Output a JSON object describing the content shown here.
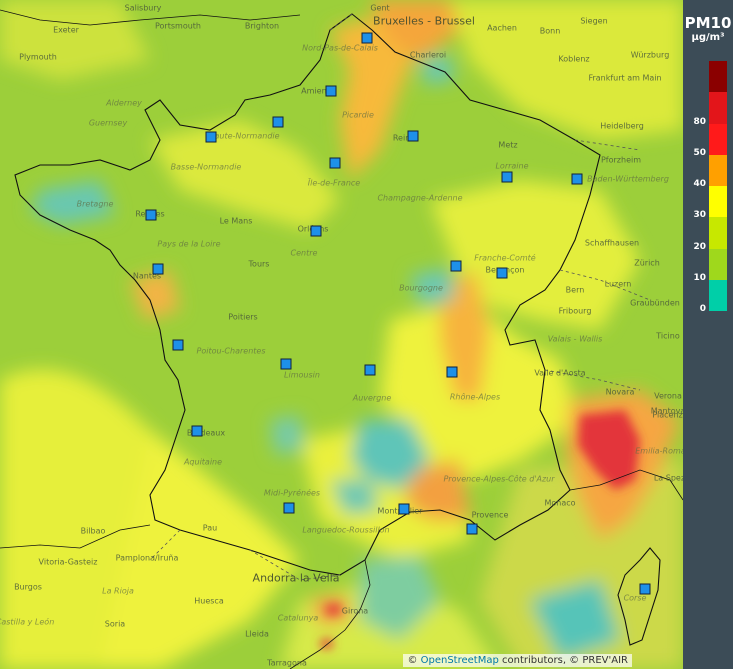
{
  "legend": {
    "title": "PM10",
    "unit": "µg/m³",
    "bins": [
      {
        "color": "#8b0000",
        "label": ""
      },
      {
        "color": "#e3151a",
        "label": "80"
      },
      {
        "color": "#ff1a1a",
        "label": "50"
      },
      {
        "color": "#ffa000",
        "label": "40"
      },
      {
        "color": "#ffff00",
        "label": "30"
      },
      {
        "color": "#c7e800",
        "label": "20"
      },
      {
        "color": "#9fd81c",
        "label": "10"
      },
      {
        "color": "#00cfa8",
        "label": "0"
      }
    ]
  },
  "attribution": {
    "prefix": "©",
    "osm": "OpenStreetMap",
    "middle": "contributors, ©",
    "prevair": "PREV'AIR"
  },
  "places": [
    {
      "name": "Salisbury",
      "cls": ""
    },
    {
      "name": "Portsmouth",
      "cls": ""
    },
    {
      "name": "Brighton",
      "cls": ""
    },
    {
      "name": "Exeter",
      "cls": ""
    },
    {
      "name": "Plymouth",
      "cls": ""
    },
    {
      "name": "Bruxelles - Brussel",
      "cls": "big"
    },
    {
      "name": "Gent",
      "cls": ""
    },
    {
      "name": "Aachen",
      "cls": ""
    },
    {
      "name": "Bonn",
      "cls": ""
    },
    {
      "name": "Siegen",
      "cls": ""
    },
    {
      "name": "Charleroi",
      "cls": ""
    },
    {
      "name": "Koblenz",
      "cls": ""
    },
    {
      "name": "Frankfurt am Main",
      "cls": ""
    },
    {
      "name": "Würzburg",
      "cls": ""
    },
    {
      "name": "Nord-Pas-de-Calais",
      "cls": "region"
    },
    {
      "name": "Amiens",
      "cls": ""
    },
    {
      "name": "Picardie",
      "cls": "region"
    },
    {
      "name": "Alderney",
      "cls": "region"
    },
    {
      "name": "Guernsey",
      "cls": "region"
    },
    {
      "name": "Haute-Normandie",
      "cls": "region"
    },
    {
      "name": "Basse-Normandie",
      "cls": "region"
    },
    {
      "name": "Reims",
      "cls": ""
    },
    {
      "name": "Metz",
      "cls": ""
    },
    {
      "name": "Lorraine",
      "cls": "region"
    },
    {
      "name": "Heidelberg",
      "cls": ""
    },
    {
      "name": "Pforzheim",
      "cls": ""
    },
    {
      "name": "Baden-Württemberg",
      "cls": "region"
    },
    {
      "name": "Île-de-France",
      "cls": "region"
    },
    {
      "name": "Champagne-Ardenne",
      "cls": "region"
    },
    {
      "name": "Bretagne",
      "cls": "region"
    },
    {
      "name": "Rennes",
      "cls": ""
    },
    {
      "name": "Le Mans",
      "cls": ""
    },
    {
      "name": "Orléans",
      "cls": ""
    },
    {
      "name": "Pays de la Loire",
      "cls": "region"
    },
    {
      "name": "Centre",
      "cls": "region"
    },
    {
      "name": "Tours",
      "cls": ""
    },
    {
      "name": "Nantes",
      "cls": ""
    },
    {
      "name": "Besançon",
      "cls": ""
    },
    {
      "name": "Bourgogne",
      "cls": "region"
    },
    {
      "name": "Franche-Comté",
      "cls": "region"
    },
    {
      "name": "Schaffhausen",
      "cls": ""
    },
    {
      "name": "Zürich",
      "cls": ""
    },
    {
      "name": "Bern",
      "cls": ""
    },
    {
      "name": "Luzern",
      "cls": ""
    },
    {
      "name": "Fribourg",
      "cls": ""
    },
    {
      "name": "Graubünden",
      "cls": ""
    },
    {
      "name": "Ticino",
      "cls": ""
    },
    {
      "name": "Valais - Wallis",
      "cls": "region"
    },
    {
      "name": "Poitiers",
      "cls": ""
    },
    {
      "name": "Poitou-Charentes",
      "cls": "region"
    },
    {
      "name": "Limousin",
      "cls": "region"
    },
    {
      "name": "Auvergne",
      "cls": "region"
    },
    {
      "name": "Rhône-Alpes",
      "cls": "region"
    },
    {
      "name": "Valle d'Aosta",
      "cls": ""
    },
    {
      "name": "Novara",
      "cls": ""
    },
    {
      "name": "Verona",
      "cls": ""
    },
    {
      "name": "Mantova",
      "cls": ""
    },
    {
      "name": "Piacenza",
      "cls": ""
    },
    {
      "name": "Emilia-Romagna",
      "cls": "region"
    },
    {
      "name": "La Spezia",
      "cls": ""
    },
    {
      "name": "Bordeaux",
      "cls": ""
    },
    {
      "name": "Aquitaine",
      "cls": "region"
    },
    {
      "name": "Provence-Alpes-Côte d'Azur",
      "cls": "region"
    },
    {
      "name": "Monaco",
      "cls": ""
    },
    {
      "name": "Midi-Pyrénées",
      "cls": "region"
    },
    {
      "name": "Bilbao",
      "cls": ""
    },
    {
      "name": "Pau",
      "cls": ""
    },
    {
      "name": "Montpellier",
      "cls": ""
    },
    {
      "name": "Provence",
      "cls": ""
    },
    {
      "name": "Languedoc-Roussillon",
      "cls": "region"
    },
    {
      "name": "Pamplona/Iruña",
      "cls": ""
    },
    {
      "name": "Vitoria-Gasteiz",
      "cls": ""
    },
    {
      "name": "Andorra la Vella",
      "cls": "big"
    },
    {
      "name": "Burgos",
      "cls": ""
    },
    {
      "name": "La Rioja",
      "cls": "region"
    },
    {
      "name": "Girona",
      "cls": ""
    },
    {
      "name": "Catalunya",
      "cls": "region"
    },
    {
      "name": "Huesca",
      "cls": ""
    },
    {
      "name": "Soria",
      "cls": ""
    },
    {
      "name": "Lleida",
      "cls": ""
    },
    {
      "name": "Tarragona",
      "cls": ""
    },
    {
      "name": "Castilla y León",
      "cls": "region"
    },
    {
      "name": "Corse",
      "cls": "region"
    }
  ],
  "stations": [
    "station-lille",
    "station-amiens",
    "station-rouen",
    "station-caen",
    "station-reims",
    "station-paris",
    "station-metz",
    "station-strasbourg",
    "station-rennes",
    "station-orleans",
    "station-dijon",
    "station-besancon",
    "station-nantes",
    "station-la-rochelle",
    "station-limoges",
    "station-clermont",
    "station-lyon",
    "station-bordeaux",
    "station-toulouse",
    "station-montpellier",
    "station-marseille",
    "station-ajaccio"
  ]
}
